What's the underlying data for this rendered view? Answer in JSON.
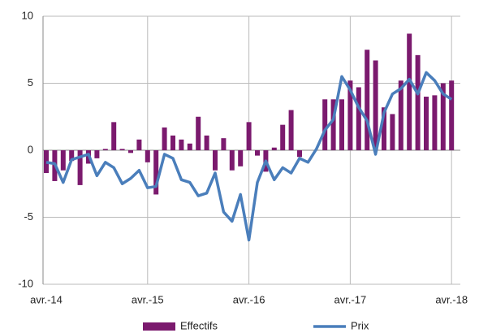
{
  "chart_data": {
    "type": "bar-line",
    "categories": [
      "avr.-14",
      null,
      null,
      null,
      null,
      null,
      null,
      null,
      null,
      null,
      null,
      null,
      "avr.-15",
      null,
      null,
      null,
      null,
      null,
      null,
      null,
      null,
      null,
      null,
      null,
      "avr.-16",
      null,
      null,
      null,
      null,
      null,
      null,
      null,
      null,
      null,
      null,
      null,
      "avr.-17",
      null,
      null,
      null,
      null,
      null,
      null,
      null,
      null,
      null,
      null,
      null,
      "avr.-18"
    ],
    "series": [
      {
        "name": "Effectifs",
        "type": "bar",
        "color": "#7b1a6e",
        "values": [
          -1.7,
          -2.3,
          -1.5,
          -0.8,
          -2.6,
          -1.0,
          -0.6,
          0.1,
          2.1,
          0.1,
          -0.2,
          0.8,
          -0.9,
          -3.3,
          1.7,
          1.1,
          0.8,
          0.5,
          2.5,
          1.1,
          -1.5,
          0.9,
          -1.5,
          -1.2,
          2.1,
          -0.4,
          -1.6,
          0.2,
          1.9,
          3.0,
          -0.5,
          0.0,
          0.0,
          3.8,
          3.8,
          3.8,
          5.2,
          4.7,
          7.5,
          6.7,
          3.2,
          2.7,
          5.2,
          8.7,
          7.1,
          4.0,
          4.1,
          5.0,
          5.2
        ]
      },
      {
        "name": "Prix",
        "type": "line",
        "color": "#4a7ebb",
        "values": [
          -0.9,
          -1.0,
          -2.4,
          -0.7,
          -0.5,
          -0.3,
          -1.9,
          -0.9,
          -1.3,
          -2.5,
          -2.1,
          -1.5,
          -2.8,
          -2.7,
          -0.3,
          -0.6,
          -2.2,
          -2.4,
          -3.4,
          -3.2,
          -1.7,
          -4.6,
          -5.3,
          -3.3,
          -6.7,
          -2.4,
          -0.8,
          -2.2,
          -1.3,
          -1.7,
          -0.6,
          -0.9,
          0.1,
          1.5,
          2.3,
          5.5,
          4.5,
          3.2,
          2.2,
          -0.3,
          2.8,
          4.2,
          4.6,
          5.3,
          4.2,
          5.8,
          5.2,
          4.2,
          3.8
        ]
      }
    ],
    "ylim": [
      -10,
      10
    ],
    "yticks": [
      10,
      5,
      0,
      -5,
      -10
    ],
    "grid": true,
    "legend": "bottom"
  }
}
